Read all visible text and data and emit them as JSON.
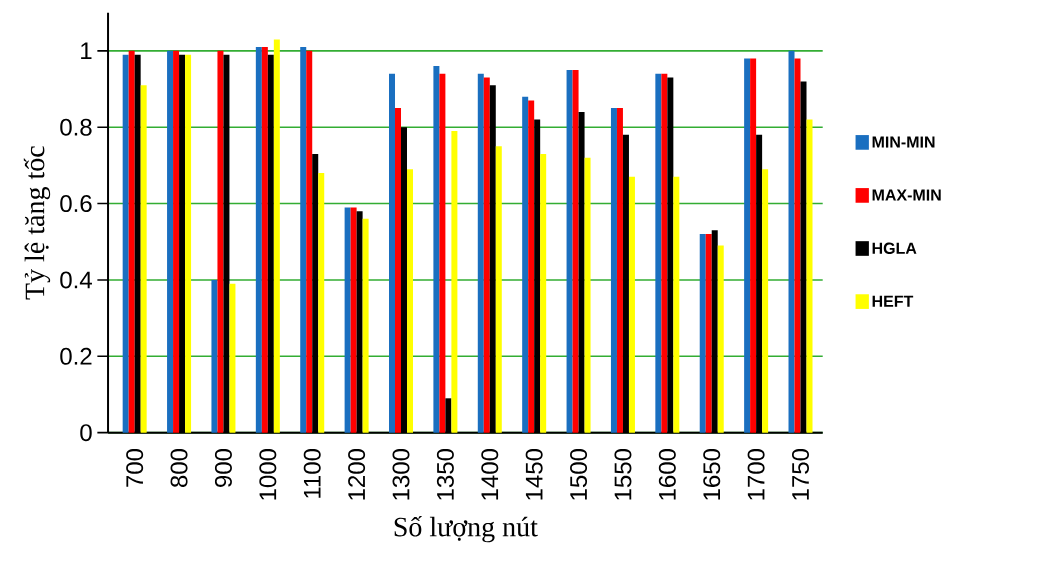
{
  "chart_data": {
    "type": "bar",
    "xlabel": "Số lượng nút",
    "ylabel": "Tỷ lệ tăng tốc",
    "categories": [
      "700",
      "800",
      "900",
      "1000",
      "1100",
      "1200",
      "1300",
      "1350",
      "1400",
      "1450",
      "1500",
      "1550",
      "1600",
      "1650",
      "1700",
      "1750"
    ],
    "series": [
      {
        "name": "MIN-MIN",
        "color": "#1a6fc0",
        "values": [
          0.99,
          1.0,
          0.4,
          1.01,
          1.01,
          0.59,
          0.94,
          0.96,
          0.94,
          0.88,
          0.95,
          0.85,
          0.94,
          0.52,
          0.98,
          1.0
        ]
      },
      {
        "name": "MAX-MIN",
        "color": "#ff0000",
        "values": [
          1.0,
          1.0,
          1.0,
          1.01,
          1.0,
          0.59,
          0.85,
          0.94,
          0.93,
          0.87,
          0.95,
          0.85,
          0.94,
          0.52,
          0.98,
          0.98
        ]
      },
      {
        "name": "HGLA",
        "color": "#000000",
        "values": [
          0.99,
          0.99,
          0.99,
          0.99,
          0.73,
          0.58,
          0.8,
          0.09,
          0.91,
          0.82,
          0.84,
          0.78,
          0.93,
          0.53,
          0.78,
          0.92
        ]
      },
      {
        "name": "HEFT",
        "color": "#ffff00",
        "values": [
          0.91,
          0.99,
          0.39,
          1.03,
          0.68,
          0.56,
          0.69,
          0.79,
          0.75,
          0.73,
          0.72,
          0.67,
          0.67,
          0.49,
          0.69,
          0.82
        ]
      }
    ],
    "ylim": [
      0,
      1.1
    ],
    "yticks": [
      0,
      0.2,
      0.4,
      0.6,
      0.8,
      1
    ],
    "grid": "y",
    "legend": "right"
  }
}
